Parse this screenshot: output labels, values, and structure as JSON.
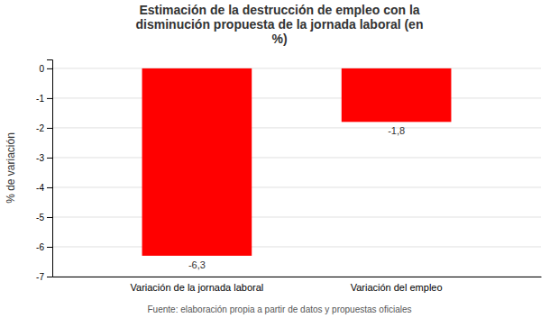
{
  "chart_data": {
    "type": "bar",
    "title": "Estimación de la destrucción de empleo con la\ndisminución propuesta de la jornada laboral (en\n%)",
    "categories": [
      "Variación de la jornada laboral",
      "Variación del empleo"
    ],
    "values": [
      -6.3,
      -1.8
    ],
    "value_labels": [
      "-6,3",
      "-1,8"
    ],
    "data_labels": true,
    "color": "#ff0000",
    "ylabel": "% de variación",
    "ylim": [
      -7,
      0.3
    ],
    "yticks": [
      0,
      -1,
      -2,
      -3,
      -4,
      -5,
      -6,
      -7
    ],
    "grid": true,
    "footnote": "Fuente: elaboración propia a partir de datos y propuestas oficiales"
  }
}
